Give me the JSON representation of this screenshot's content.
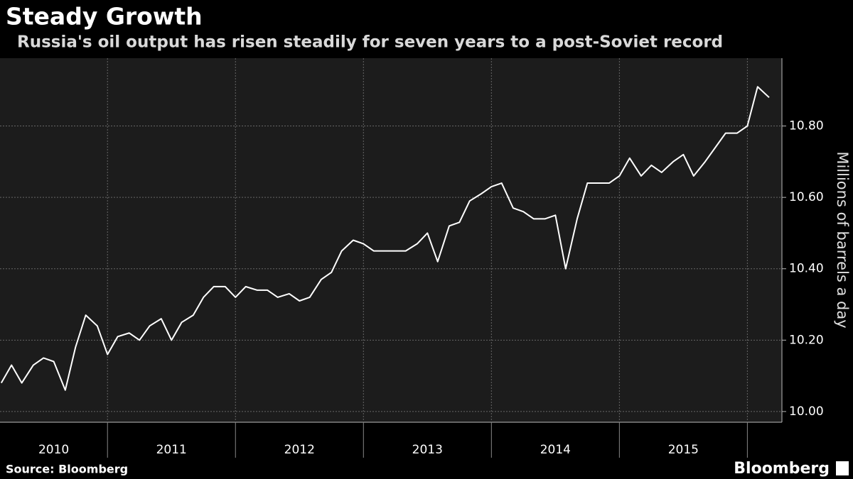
{
  "chart_data": {
    "type": "line",
    "title": "Steady Growth",
    "subtitle": "Russia's oil output has risen steadily for seven years to a post-Soviet record",
    "y_axis_label": "Millions of barrels a day",
    "source": "Source: Bloomberg",
    "brand": "Bloomberg",
    "series": [
      {
        "name": "Russia oil output",
        "color": "#ffffff",
        "x": [
          2010.17,
          2010.25,
          2010.33,
          2010.42,
          2010.5,
          2010.58,
          2010.67,
          2010.75,
          2010.83,
          2010.92,
          2011.0,
          2011.08,
          2011.17,
          2011.25,
          2011.33,
          2011.42,
          2011.5,
          2011.58,
          2011.67,
          2011.75,
          2011.83,
          2011.92,
          2012.0,
          2012.08,
          2012.17,
          2012.25,
          2012.33,
          2012.42,
          2012.5,
          2012.58,
          2012.67,
          2012.75,
          2012.83,
          2012.92,
          2013.0,
          2013.08,
          2013.17,
          2013.25,
          2013.33,
          2013.42,
          2013.5,
          2013.58,
          2013.67,
          2013.75,
          2013.83,
          2013.92,
          2014.0,
          2014.08,
          2014.17,
          2014.25,
          2014.33,
          2014.42,
          2014.5,
          2014.58,
          2014.67,
          2014.75,
          2014.83,
          2014.92,
          2015.0,
          2015.08,
          2015.17,
          2015.25,
          2015.33,
          2015.42,
          2015.5,
          2015.58,
          2015.67,
          2015.75,
          2015.83,
          2015.92,
          2016.0,
          2016.08,
          2016.17
        ],
        "values": [
          10.08,
          10.13,
          10.08,
          10.13,
          10.15,
          10.14,
          10.06,
          10.18,
          10.27,
          10.24,
          10.16,
          10.21,
          10.22,
          10.2,
          10.24,
          10.26,
          10.2,
          10.25,
          10.27,
          10.32,
          10.35,
          10.35,
          10.32,
          10.35,
          10.34,
          10.34,
          10.32,
          10.33,
          10.31,
          10.32,
          10.37,
          10.39,
          10.45,
          10.48,
          10.47,
          10.45,
          10.45,
          10.45,
          10.45,
          10.47,
          10.5,
          10.42,
          10.52,
          10.53,
          10.59,
          10.61,
          10.63,
          10.64,
          10.57,
          10.56,
          10.54,
          10.54,
          10.55,
          10.4,
          10.54,
          10.64,
          10.64,
          10.64,
          10.66,
          10.71,
          10.66,
          10.69,
          10.67,
          10.7,
          10.72,
          10.66,
          10.7,
          10.74,
          10.78,
          10.78,
          10.8,
          10.91,
          10.88
        ]
      }
    ],
    "xlim": [
      2010.16,
      2016.27
    ],
    "xticks": [
      {
        "value": 2010.58,
        "label": "2010"
      },
      {
        "value": 2011.5,
        "label": "2011"
      },
      {
        "value": 2012.5,
        "label": "2012"
      },
      {
        "value": 2013.5,
        "label": "2013"
      },
      {
        "value": 2014.5,
        "label": "2014"
      },
      {
        "value": 2015.5,
        "label": "2015"
      }
    ],
    "xgrid": [
      2011,
      2012,
      2013,
      2014,
      2015,
      2016
    ],
    "ylim": [
      9.97,
      10.99
    ],
    "yticks": [
      {
        "value": 10.0,
        "label": "10.00"
      },
      {
        "value": 10.2,
        "label": "10.20"
      },
      {
        "value": 10.4,
        "label": "10.40"
      },
      {
        "value": 10.6,
        "label": "10.60"
      },
      {
        "value": 10.8,
        "label": "10.80"
      }
    ],
    "grid": true
  }
}
